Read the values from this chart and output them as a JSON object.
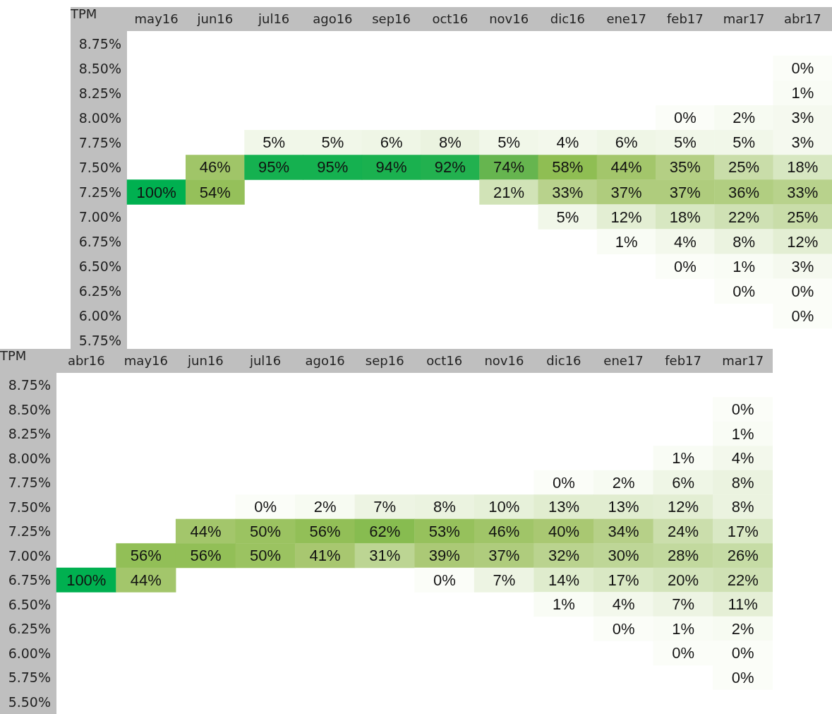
{
  "chart_data": [
    {
      "type": "heatmap",
      "ylabel": "TPM",
      "categories": [
        "may16",
        "jun16",
        "jul16",
        "ago16",
        "sep16",
        "oct16",
        "nov16",
        "dic16",
        "ene17",
        "feb17",
        "mar17",
        "abr17"
      ],
      "y_categories": [
        "8.75%",
        "8.50%",
        "8.25%",
        "8.00%",
        "7.75%",
        "7.50%",
        "7.25%",
        "7.00%",
        "6.75%",
        "6.50%",
        "6.25%",
        "6.00%",
        "5.75%"
      ],
      "cells": [
        [
          null,
          null,
          null,
          null,
          null,
          null,
          null,
          null,
          null,
          null,
          null,
          null
        ],
        [
          null,
          null,
          null,
          null,
          null,
          null,
          null,
          null,
          null,
          null,
          null,
          0
        ],
        [
          null,
          null,
          null,
          null,
          null,
          null,
          null,
          null,
          null,
          null,
          null,
          1
        ],
        [
          null,
          null,
          null,
          null,
          null,
          null,
          null,
          null,
          null,
          0,
          2,
          3
        ],
        [
          null,
          null,
          5,
          5,
          6,
          8,
          5,
          4,
          6,
          5,
          5,
          3
        ],
        [
          null,
          46,
          95,
          95,
          94,
          92,
          74,
          58,
          44,
          35,
          25,
          18
        ],
        [
          100,
          54,
          null,
          null,
          null,
          null,
          21,
          33,
          37,
          37,
          36,
          33
        ],
        [
          null,
          null,
          null,
          null,
          null,
          null,
          null,
          5,
          12,
          18,
          22,
          25
        ],
        [
          null,
          null,
          null,
          null,
          null,
          null,
          null,
          null,
          1,
          4,
          8,
          12
        ],
        [
          null,
          null,
          null,
          null,
          null,
          null,
          null,
          null,
          null,
          0,
          1,
          3
        ],
        [
          null,
          null,
          null,
          null,
          null,
          null,
          null,
          null,
          null,
          null,
          0,
          0
        ],
        [
          null,
          null,
          null,
          null,
          null,
          null,
          null,
          null,
          null,
          null,
          null,
          0
        ],
        [
          null,
          null,
          null,
          null,
          null,
          null,
          null,
          null,
          null,
          null,
          null,
          null
        ]
      ],
      "cell_labels": [
        [
          null,
          null,
          null,
          null,
          null,
          null,
          null,
          null,
          null,
          null,
          null,
          null
        ],
        [
          null,
          null,
          null,
          null,
          null,
          null,
          null,
          null,
          null,
          null,
          null,
          "0%"
        ],
        [
          null,
          null,
          null,
          null,
          null,
          null,
          null,
          null,
          null,
          null,
          null,
          "1%"
        ],
        [
          null,
          null,
          null,
          null,
          null,
          null,
          null,
          null,
          null,
          "0%",
          "2%",
          "3%"
        ],
        [
          null,
          null,
          "5%",
          "5%",
          "6%",
          "8%",
          "5%",
          "4%",
          "6%",
          "5%",
          "5%",
          "3%"
        ],
        [
          null,
          "46%",
          "95%",
          "95%",
          "94%",
          "92%",
          "74%",
          "58%",
          "44%",
          "35%",
          "25%",
          "18%"
        ],
        [
          "100%",
          "54%",
          null,
          null,
          null,
          null,
          "21%",
          "33%",
          "37%",
          "37%",
          "36%",
          "33%"
        ],
        [
          null,
          null,
          null,
          null,
          null,
          null,
          null,
          "5%",
          "12%",
          "18%",
          "22%",
          "25%"
        ],
        [
          null,
          null,
          null,
          null,
          null,
          null,
          null,
          null,
          "1%",
          "4%",
          "8%",
          "12%"
        ],
        [
          null,
          null,
          null,
          null,
          null,
          null,
          null,
          null,
          null,
          "0%",
          "1%",
          "3%"
        ],
        [
          null,
          null,
          null,
          null,
          null,
          null,
          null,
          null,
          null,
          null,
          "0%",
          "0%"
        ],
        [
          null,
          null,
          null,
          null,
          null,
          null,
          null,
          null,
          null,
          null,
          null,
          "0%"
        ],
        [
          null,
          null,
          null,
          null,
          null,
          null,
          null,
          null,
          null,
          null,
          null,
          null
        ]
      ]
    },
    {
      "type": "heatmap",
      "ylabel": "TPM",
      "categories": [
        "abr16",
        "may16",
        "jun16",
        "jul16",
        "ago16",
        "sep16",
        "oct16",
        "nov16",
        "dic16",
        "ene17",
        "feb17",
        "mar17"
      ],
      "y_categories": [
        "8.75%",
        "8.50%",
        "8.25%",
        "8.00%",
        "7.75%",
        "7.50%",
        "7.25%",
        "7.00%",
        "6.75%",
        "6.50%",
        "6.25%",
        "6.00%",
        "5.75%",
        "5.50%"
      ],
      "cells": [
        [
          null,
          null,
          null,
          null,
          null,
          null,
          null,
          null,
          null,
          null,
          null,
          null
        ],
        [
          null,
          null,
          null,
          null,
          null,
          null,
          null,
          null,
          null,
          null,
          null,
          0
        ],
        [
          null,
          null,
          null,
          null,
          null,
          null,
          null,
          null,
          null,
          null,
          null,
          1
        ],
        [
          null,
          null,
          null,
          null,
          null,
          null,
          null,
          null,
          null,
          null,
          1,
          4
        ],
        [
          null,
          null,
          null,
          null,
          null,
          null,
          null,
          null,
          0,
          2,
          6,
          8
        ],
        [
          null,
          null,
          null,
          0,
          2,
          7,
          8,
          10,
          13,
          13,
          12,
          8
        ],
        [
          null,
          null,
          44,
          50,
          56,
          62,
          53,
          46,
          40,
          34,
          24,
          17
        ],
        [
          null,
          56,
          56,
          50,
          41,
          31,
          39,
          37,
          32,
          30,
          28,
          26
        ],
        [
          100,
          44,
          null,
          null,
          null,
          null,
          0,
          7,
          14,
          17,
          20,
          22
        ],
        [
          null,
          null,
          null,
          null,
          null,
          null,
          null,
          null,
          1,
          4,
          7,
          11
        ],
        [
          null,
          null,
          null,
          null,
          null,
          null,
          null,
          null,
          null,
          0,
          1,
          2
        ],
        [
          null,
          null,
          null,
          null,
          null,
          null,
          null,
          null,
          null,
          null,
          0,
          0
        ],
        [
          null,
          null,
          null,
          null,
          null,
          null,
          null,
          null,
          null,
          null,
          null,
          0
        ],
        [
          null,
          null,
          null,
          null,
          null,
          null,
          null,
          null,
          null,
          null,
          null,
          null
        ]
      ],
      "cell_labels": [
        [
          null,
          null,
          null,
          null,
          null,
          null,
          null,
          null,
          null,
          null,
          null,
          null
        ],
        [
          null,
          null,
          null,
          null,
          null,
          null,
          null,
          null,
          null,
          null,
          null,
          "0%"
        ],
        [
          null,
          null,
          null,
          null,
          null,
          null,
          null,
          null,
          null,
          null,
          null,
          "1%"
        ],
        [
          null,
          null,
          null,
          null,
          null,
          null,
          null,
          null,
          null,
          null,
          "1%",
          "4%"
        ],
        [
          null,
          null,
          null,
          null,
          null,
          null,
          null,
          null,
          "0%",
          "2%",
          "6%",
          "8%"
        ],
        [
          null,
          null,
          null,
          "0%",
          "2%",
          "7%",
          "8%",
          "10%",
          "13%",
          "13%",
          "12%",
          "8%"
        ],
        [
          null,
          null,
          "44%",
          "50%",
          "56%",
          "62%",
          "53%",
          "46%",
          "40%",
          "34%",
          "24%",
          "17%"
        ],
        [
          null,
          "56%",
          "56%",
          "50%",
          "41%",
          "31%",
          "39%",
          "37%",
          "32%",
          "30%",
          "28%",
          "26%"
        ],
        [
          "100%",
          "44%",
          null,
          null,
          null,
          null,
          "0%",
          "7%",
          "14%",
          "17%",
          "20%",
          "22%"
        ],
        [
          null,
          null,
          null,
          null,
          null,
          null,
          null,
          null,
          "1%",
          "4%",
          "7%",
          "11%"
        ],
        [
          null,
          null,
          null,
          null,
          null,
          null,
          null,
          null,
          null,
          "0%",
          "1%",
          "2%"
        ],
        [
          null,
          null,
          null,
          null,
          null,
          null,
          null,
          null,
          null,
          null,
          "0%",
          "0%"
        ],
        [
          null,
          null,
          null,
          null,
          null,
          null,
          null,
          null,
          null,
          null,
          null,
          "0%"
        ],
        [
          null,
          null,
          null,
          null,
          null,
          null,
          null,
          null,
          null,
          null,
          null,
          null
        ]
      ]
    }
  ]
}
